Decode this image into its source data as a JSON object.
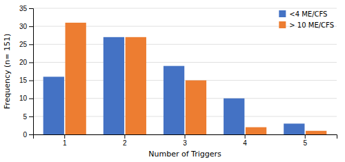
{
  "chart_data": {
    "type": "bar",
    "categories": [
      "1",
      "2",
      "3",
      "4",
      "5"
    ],
    "series": [
      {
        "name": "<4 ME/CFS",
        "color": "#4472C4",
        "values": [
          16,
          27,
          19,
          10,
          3
        ]
      },
      {
        "name": "> 10 ME/CFS",
        "color": "#ED7D31",
        "values": [
          31,
          27,
          15,
          2,
          1
        ]
      }
    ],
    "xlabel": "Number of Triggers",
    "ylabel": "Frequency (n= 151)",
    "ylim": [
      0,
      35
    ],
    "yticks": [
      0,
      5,
      10,
      15,
      20,
      25,
      30,
      35
    ],
    "grid": true,
    "legend": "upper right"
  }
}
